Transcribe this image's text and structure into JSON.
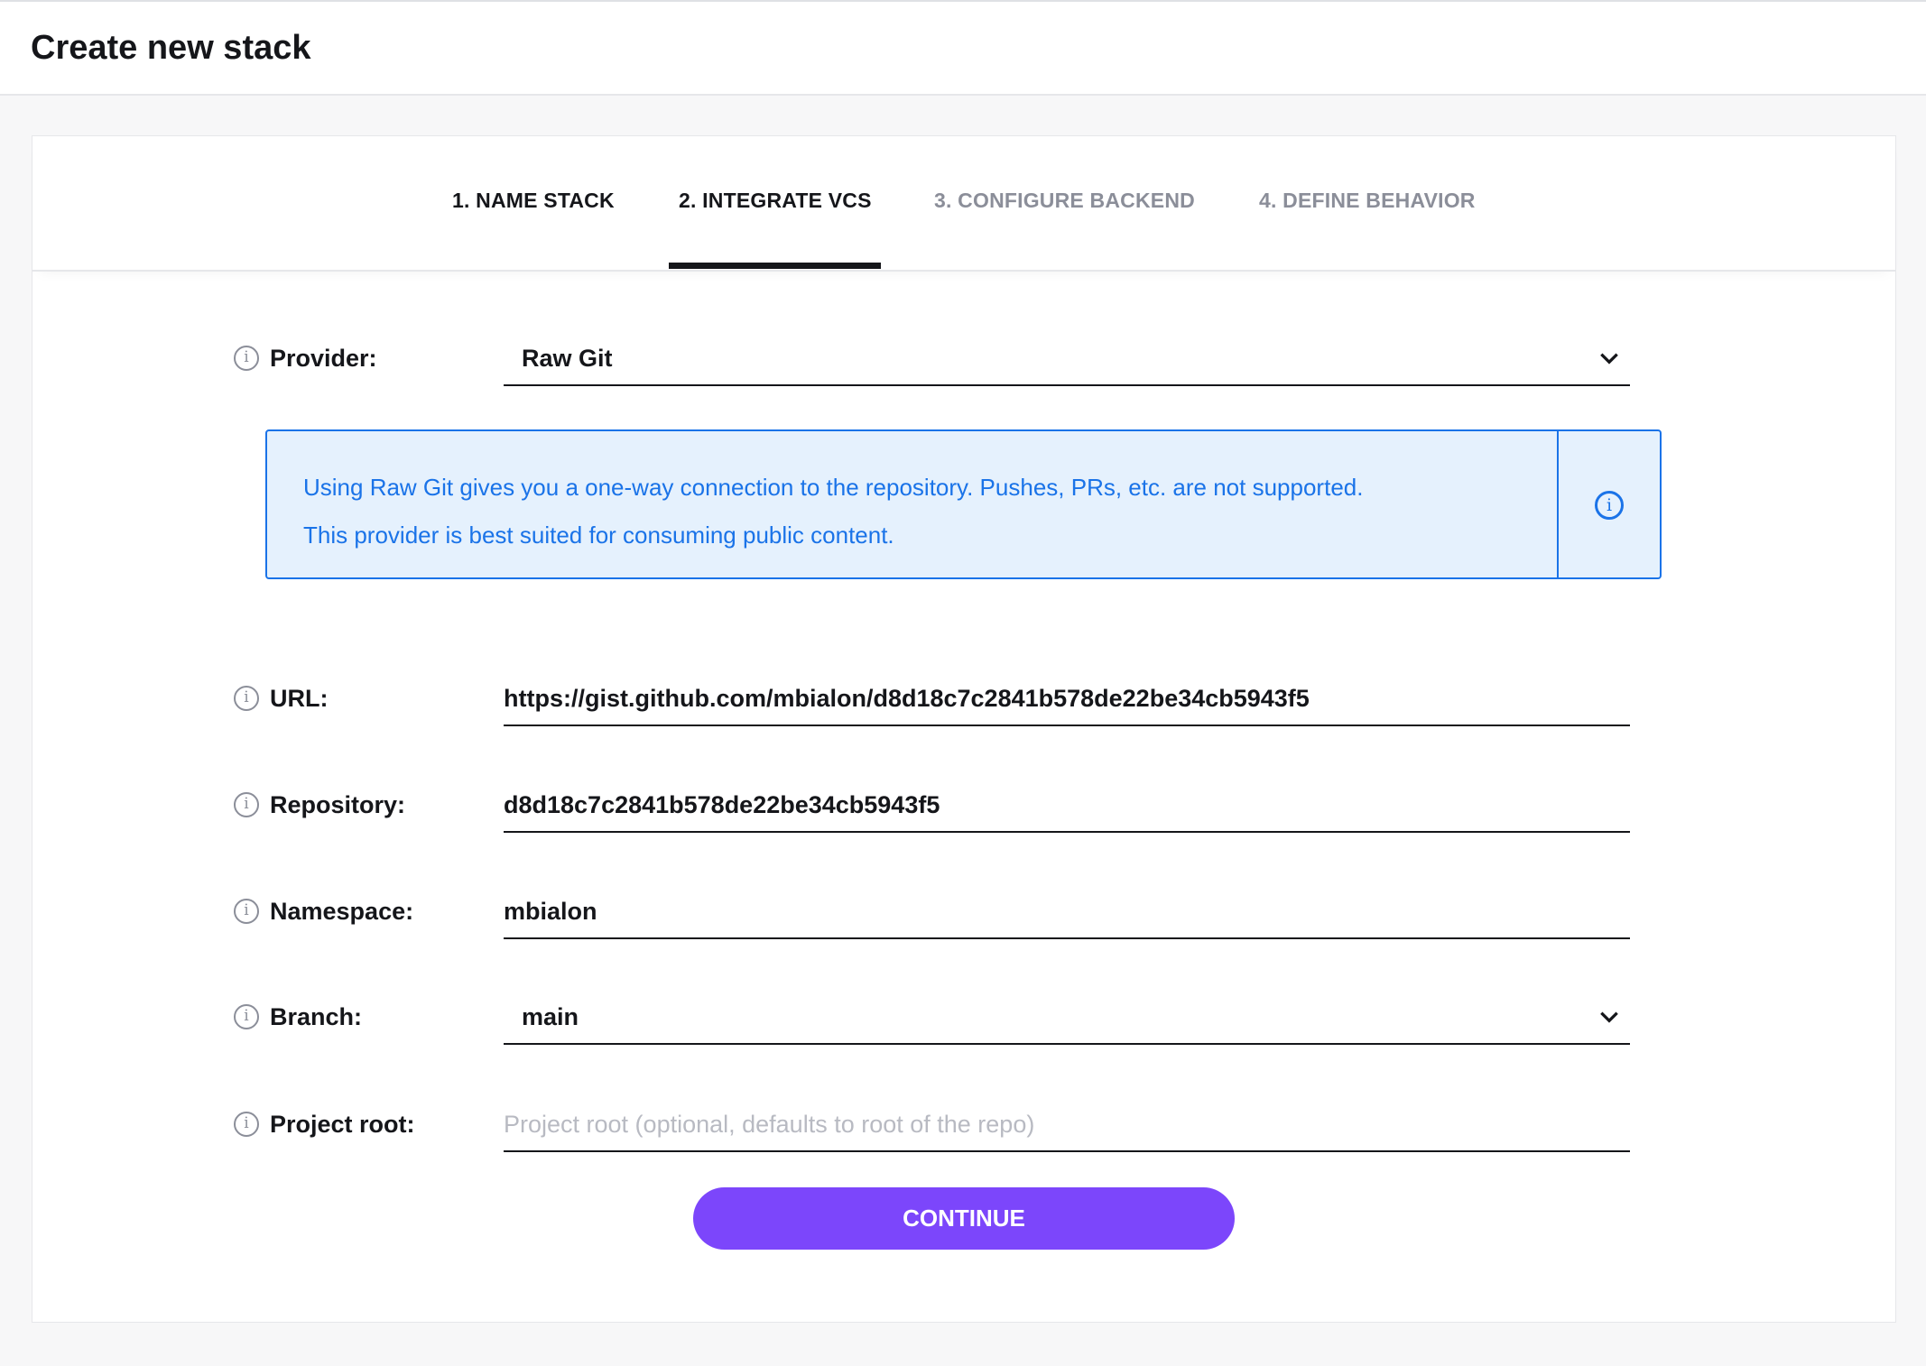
{
  "header": {
    "title": "Create new stack"
  },
  "steps": [
    {
      "label": "1. NAME STACK",
      "state": "done"
    },
    {
      "label": "2. INTEGRATE VCS",
      "state": "active"
    },
    {
      "label": "3. CONFIGURE BACKEND",
      "state": "todo"
    },
    {
      "label": "4. DEFINE BEHAVIOR",
      "state": "todo"
    }
  ],
  "form": {
    "provider": {
      "label": "Provider:",
      "value": "Raw Git"
    },
    "notice": {
      "line1": "Using Raw Git gives you a one-way connection to the repository. Pushes, PRs, etc. are not supported.",
      "line2": "This provider is best suited for consuming public content."
    },
    "url": {
      "label": "URL:",
      "value": "https://gist.github.com/mbialon/d8d18c7c2841b578de22be34cb5943f5"
    },
    "repository": {
      "label": "Repository:",
      "value": "d8d18c7c2841b578de22be34cb5943f5"
    },
    "namespace": {
      "label": "Namespace:",
      "value": "mbialon"
    },
    "branch": {
      "label": "Branch:",
      "value": "main"
    },
    "project_root": {
      "label": "Project root:",
      "value": "",
      "placeholder": "Project root (optional, defaults to root of the repo)"
    },
    "continue_label": "CONTINUE"
  },
  "colors": {
    "accent": "#7c46fb",
    "info": "#1a73e8",
    "info_bg": "#e5f1fd"
  }
}
